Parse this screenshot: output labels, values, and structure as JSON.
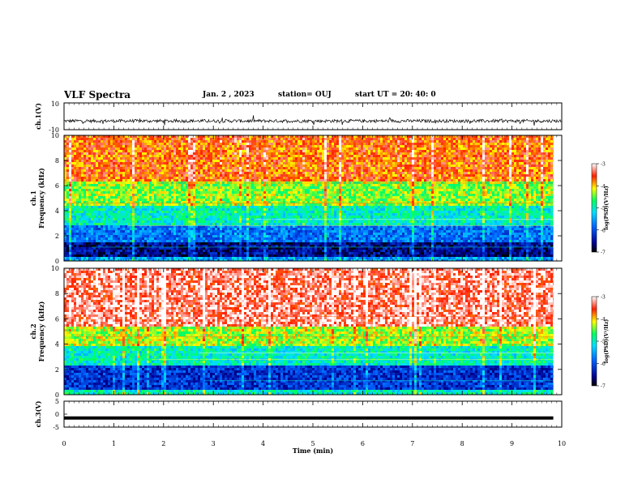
{
  "header": {
    "title": "VLF Spectra",
    "date": "Jan. 2 , 2023",
    "station": "station= OUJ",
    "start": "start  UT =   20: 40: 0"
  },
  "chart_data": [
    {
      "type": "line",
      "name": "ch1-waveform",
      "ylabel": "ch.1(V)",
      "ylim": [
        -10,
        10
      ],
      "ytick_labels": [
        "10",
        "-10"
      ],
      "xlim": [
        0,
        10
      ],
      "baseline": -3.5,
      "note_values": "noisy trace centred near -3.5 V"
    },
    {
      "type": "heatmap",
      "name": "ch1-spectrogram",
      "ylabel": "ch.1\nFrequency (kHz)",
      "ylim": [
        0,
        10
      ],
      "ytick_labels": [
        "0",
        "2",
        "4",
        "6",
        "8",
        "10"
      ],
      "xlim": [
        0,
        9.83
      ],
      "colorbar": {
        "label": "log(PSD)(V²/Hz)",
        "range": [
          -7,
          -3
        ],
        "tick_labels": [
          "-3",
          "-4",
          "-5",
          "-6",
          "-7"
        ]
      },
      "color_bands_khz": [
        {
          "from": 0,
          "to": 0.5,
          "level": -5.5
        },
        {
          "from": 0.5,
          "to": 1.5,
          "level": -6.6
        },
        {
          "from": 1.5,
          "to": 3.0,
          "level": -5.8
        },
        {
          "from": 3.0,
          "to": 4.5,
          "level": -5.0
        },
        {
          "from": 4.5,
          "to": 6.5,
          "level": -4.4
        },
        {
          "from": 6.5,
          "to": 10,
          "level": -3.7
        }
      ]
    },
    {
      "type": "heatmap",
      "name": "ch2-spectrogram",
      "ylabel": "ch.2\nFrequency (kHz)",
      "ylim": [
        0,
        10
      ],
      "ytick_labels": [
        "0",
        "2",
        "4",
        "6",
        "8",
        "10"
      ],
      "xlim": [
        0,
        9.83
      ],
      "colorbar": {
        "label": "log(PSD)(V²/Hz)",
        "range": [
          -7,
          -3
        ],
        "tick_labels": [
          "-3",
          "-4",
          "-5",
          "-6",
          "-7"
        ]
      },
      "color_bands_khz": [
        {
          "from": 0,
          "to": 0.5,
          "level": -5.0
        },
        {
          "from": 0.5,
          "to": 2.5,
          "level": -6.2
        },
        {
          "from": 2.5,
          "to": 4.0,
          "level": -5.0
        },
        {
          "from": 4.0,
          "to": 5.5,
          "level": -4.3
        },
        {
          "from": 5.5,
          "to": 10,
          "level": -3.3
        }
      ]
    },
    {
      "type": "line",
      "name": "ch3-waveform",
      "ylabel": "ch.3(V)",
      "ylim": [
        -5,
        5
      ],
      "ytick_labels": [
        "5",
        "0",
        "-5"
      ],
      "xlim": [
        0,
        9.83
      ],
      "values_constant": -1.5
    },
    {
      "type": "axis",
      "name": "time-axis",
      "xlabel": "Time (min)",
      "xlim": [
        0,
        10
      ],
      "xtick_labels": [
        "0",
        "1",
        "2",
        "3",
        "4",
        "5",
        "6",
        "7",
        "8",
        "9",
        "10"
      ]
    }
  ]
}
